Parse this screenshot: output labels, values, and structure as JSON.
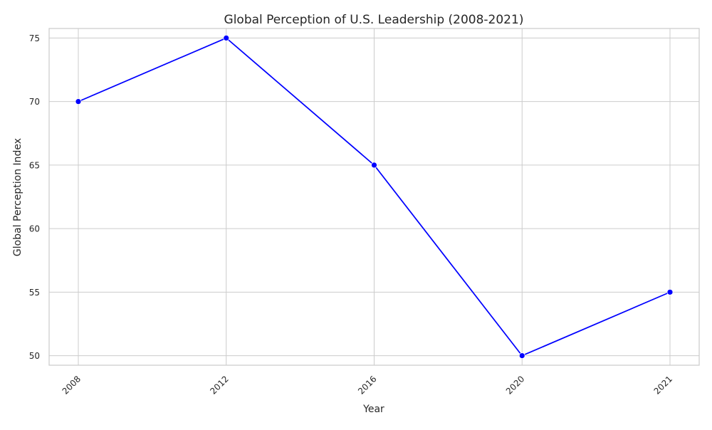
{
  "chart_data": {
    "type": "line",
    "title": "Global Perception of U.S. Leadership (2008-2021)",
    "xlabel": "Year",
    "ylabel": "Global Perception Index",
    "x": [
      2008,
      2012,
      2016,
      2020,
      2021
    ],
    "x_tick_labels": [
      "2008",
      "2012",
      "2016",
      "2020",
      "2021"
    ],
    "x_axis_scale": "categorical",
    "y_ticks": [
      50,
      55,
      60,
      65,
      70,
      75
    ],
    "y_tick_labels": [
      "50",
      "55",
      "60",
      "65",
      "70",
      "75"
    ],
    "ylim": [
      49.25,
      75.75
    ],
    "series": [
      {
        "color": "#0000ff",
        "marker": "circle",
        "values": [
          70,
          75,
          65,
          50,
          55
        ]
      }
    ],
    "grid": true,
    "legend": "none",
    "x_tick_rotation_deg": 45
  },
  "colors": {
    "background": "#ffffff",
    "grid": "#cccccc",
    "spine": "#cccccc",
    "text": "#262626"
  }
}
